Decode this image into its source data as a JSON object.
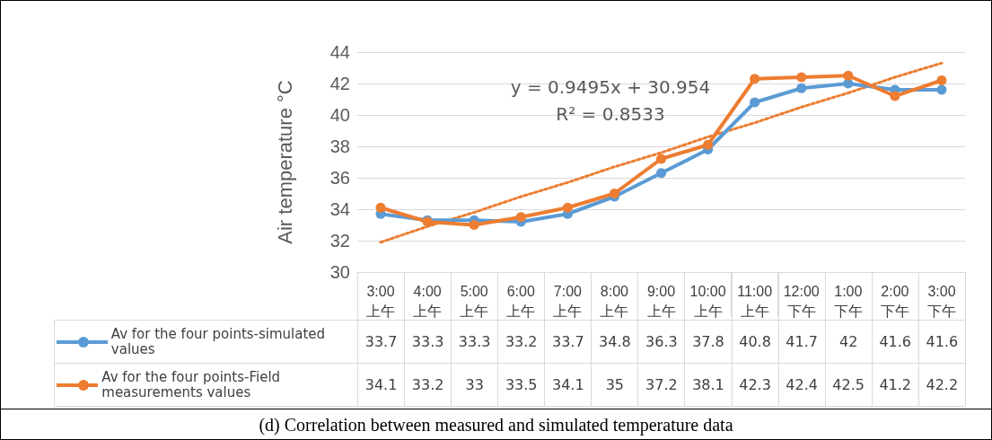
{
  "chart_data": {
    "type": "line",
    "ylabel": "Air temperature °C",
    "categories": [
      "3:00\n上午",
      "4:00\n上午",
      "5:00\n上午",
      "6:00\n上午",
      "7:00\n上午",
      "8:00\n上午",
      "9:00\n上午",
      "10:00\n上午",
      "11:00\n上午",
      "12:00\n下午",
      "1:00\n下午",
      "2:00\n下午",
      "3:00\n下午"
    ],
    "series": [
      {
        "name": "Av for the four points-simulated values",
        "color": "#5b9bd5",
        "values": [
          33.7,
          33.3,
          33.3,
          33.2,
          33.7,
          34.8,
          36.3,
          37.8,
          40.8,
          41.7,
          42,
          41.6,
          41.6
        ],
        "value_labels": [
          "33.7",
          "33.3",
          "33.3",
          "33.2",
          "33.7",
          "34.8",
          "36.3",
          "37.8",
          "40.8",
          "41.7",
          "42",
          "41.6",
          "41.6"
        ]
      },
      {
        "name": "Av for the four points-Field measurements values",
        "color": "#ed7d31",
        "values": [
          34.1,
          33.2,
          33,
          33.5,
          34.1,
          35,
          37.2,
          38.1,
          42.3,
          42.4,
          42.5,
          41.2,
          42.2
        ],
        "value_labels": [
          "34.1",
          "33.2",
          "33",
          "33.5",
          "34.1",
          "35",
          "37.2",
          "38.1",
          "42.3",
          "42.4",
          "42.5",
          "41.2",
          "42.2"
        ]
      },
      {
        "type": "line",
        "color": "#ed7d31",
        "marker": "none",
        "line_style": "dotted",
        "values": [
          31.9,
          32.9,
          33.8,
          34.8,
          35.7,
          36.7,
          37.6,
          38.6,
          39.5,
          40.5,
          41.4,
          42.4,
          43.3
        ]
      }
    ],
    "ylim": [
      30,
      44
    ],
    "yticks": [
      30,
      32,
      34,
      36,
      38,
      40,
      42,
      44
    ],
    "grid": "y",
    "marker": "circle",
    "line_style": "solid",
    "legend": "bottom",
    "annotations": [
      "y = 0.9495x + 30.954",
      "R² = 0.8533",
      "(d) Correlation between measured and simulated temperature data"
    ]
  }
}
